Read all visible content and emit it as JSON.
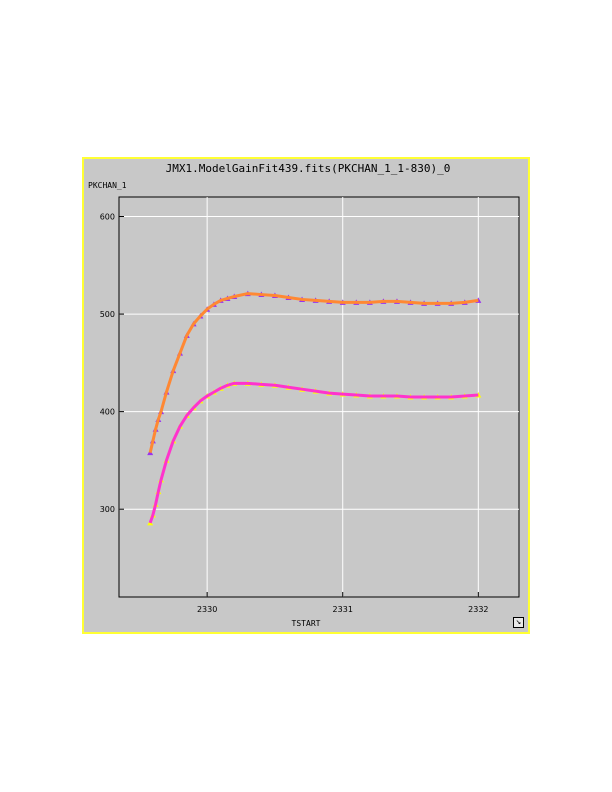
{
  "window": {
    "title": "JMX1.ModelGainFit439.fits(PKCHAN_1_1-830)_0"
  },
  "chart_data": {
    "type": "scatter",
    "title": "JMX1.ModelGainFit439.fits(PKCHAN_1_1-830)_0",
    "xlabel": "TSTART",
    "ylabel": "PKCHAN_1",
    "xlim": [
      2329.35,
      2332.3
    ],
    "ylim": [
      210,
      620
    ],
    "x_ticks": [
      2330,
      2331,
      2332
    ],
    "y_ticks": [
      300,
      400,
      500,
      600
    ],
    "grid": true,
    "series": [
      {
        "color": "#9933ee",
        "kind": "points",
        "x": [
          2329.58,
          2329.6,
          2329.62,
          2329.64,
          2329.66,
          2329.7,
          2329.75,
          2329.8,
          2329.85,
          2329.9,
          2329.95,
          2330.0,
          2330.05,
          2330.1,
          2330.15,
          2330.2,
          2330.3,
          2330.4,
          2330.5,
          2330.6,
          2330.7,
          2330.8,
          2330.9,
          2331.0,
          2331.1,
          2331.2,
          2331.3,
          2331.4,
          2331.5,
          2331.6,
          2331.7,
          2331.8,
          2331.9,
          2332.0
        ],
        "y": [
          358,
          370,
          382,
          392,
          400,
          420,
          442,
          460,
          478,
          490,
          498,
          505,
          510,
          514,
          516,
          518,
          521,
          520,
          519,
          517,
          515,
          514,
          513,
          512,
          512,
          512,
          513,
          513,
          512,
          511,
          511,
          511,
          512,
          514
        ]
      },
      {
        "color": "#ff8833",
        "kind": "fit",
        "x": [
          2329.58,
          2329.6,
          2329.62,
          2329.64,
          2329.66,
          2329.7,
          2329.75,
          2329.8,
          2329.85,
          2329.9,
          2329.95,
          2330.0,
          2330.05,
          2330.1,
          2330.15,
          2330.2,
          2330.3,
          2330.4,
          2330.5,
          2330.6,
          2330.7,
          2330.8,
          2330.9,
          2331.0,
          2331.1,
          2331.2,
          2331.3,
          2331.4,
          2331.5,
          2331.6,
          2331.7,
          2331.8,
          2331.9,
          2332.0
        ],
        "y": [
          358,
          370,
          382,
          392,
          400,
          420,
          442,
          460,
          478,
          490,
          498,
          505,
          510,
          514,
          516,
          518,
          521,
          520,
          519,
          517,
          515,
          514,
          513,
          512,
          512,
          512,
          513,
          513,
          512,
          511,
          511,
          511,
          512,
          514
        ]
      },
      {
        "color": "#ffff00",
        "kind": "points",
        "x": [
          2329.58,
          2329.6,
          2329.62,
          2329.64,
          2329.66,
          2329.7,
          2329.75,
          2329.8,
          2329.85,
          2329.9,
          2329.95,
          2330.0,
          2330.05,
          2330.1,
          2330.15,
          2330.2,
          2330.3,
          2330.4,
          2330.5,
          2330.6,
          2330.7,
          2330.8,
          2330.9,
          2331.0,
          2331.1,
          2331.2,
          2331.3,
          2331.4,
          2331.5,
          2331.6,
          2331.7,
          2331.8,
          2331.9,
          2332.0
        ],
        "y": [
          286,
          294,
          305,
          318,
          330,
          350,
          370,
          385,
          396,
          404,
          411,
          416,
          420,
          424,
          427,
          429,
          429,
          428,
          427,
          425,
          423,
          421,
          419,
          418,
          417,
          416,
          416,
          416,
          415,
          415,
          415,
          415,
          416,
          417
        ]
      },
      {
        "color": "#ff33cc",
        "kind": "fit",
        "x": [
          2329.58,
          2329.6,
          2329.62,
          2329.64,
          2329.66,
          2329.7,
          2329.75,
          2329.8,
          2329.85,
          2329.9,
          2329.95,
          2330.0,
          2330.05,
          2330.1,
          2330.15,
          2330.2,
          2330.3,
          2330.4,
          2330.5,
          2330.6,
          2330.7,
          2330.8,
          2330.9,
          2331.0,
          2331.1,
          2331.2,
          2331.3,
          2331.4,
          2331.5,
          2331.6,
          2331.7,
          2331.8,
          2331.9,
          2332.0
        ],
        "y": [
          286,
          294,
          305,
          318,
          330,
          350,
          370,
          385,
          396,
          404,
          411,
          416,
          420,
          424,
          427,
          429,
          429,
          428,
          427,
          425,
          423,
          421,
          419,
          418,
          417,
          416,
          416,
          416,
          415,
          415,
          415,
          415,
          416,
          417
        ]
      }
    ]
  }
}
